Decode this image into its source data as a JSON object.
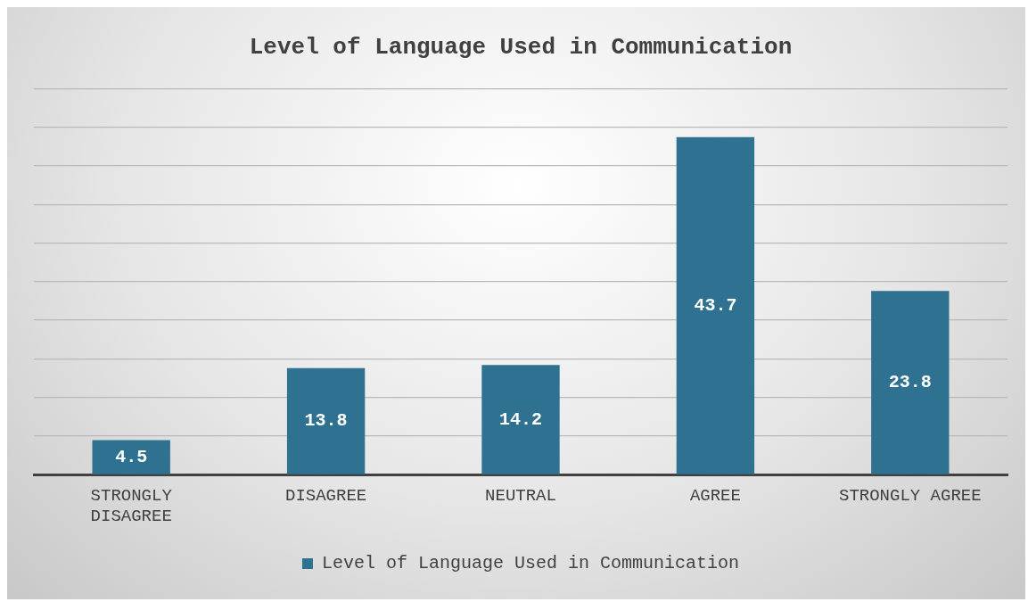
{
  "chart_data": {
    "type": "bar",
    "title": "Level of Language Used in Communication",
    "categories": [
      "STRONGLY DISAGREE",
      "DISAGREE",
      "NEUTRAL",
      "AGREE",
      "STRONGLY AGREE"
    ],
    "series": [
      {
        "name": "Level of Language Used in Communication",
        "color": "#2f7190",
        "values": [
          4.5,
          13.8,
          14.2,
          43.7,
          23.8
        ]
      }
    ],
    "ylim": [
      0,
      50
    ],
    "yticks": [
      {
        "value": 0,
        "label": null
      },
      {
        "value": 5,
        "label": null
      },
      {
        "value": 10,
        "label": null
      },
      {
        "value": 15,
        "label": null
      },
      {
        "value": 20,
        "label": null
      },
      {
        "value": 25,
        "label": null
      },
      {
        "value": 30,
        "label": null
      },
      {
        "value": 35,
        "label": null
      },
      {
        "value": 40,
        "label": null
      },
      {
        "value": 45,
        "label": null
      },
      {
        "value": 50,
        "label": null
      }
    ],
    "tick_labels": "x",
    "grid": "y",
    "data_labels": true,
    "legend": "bottom"
  }
}
